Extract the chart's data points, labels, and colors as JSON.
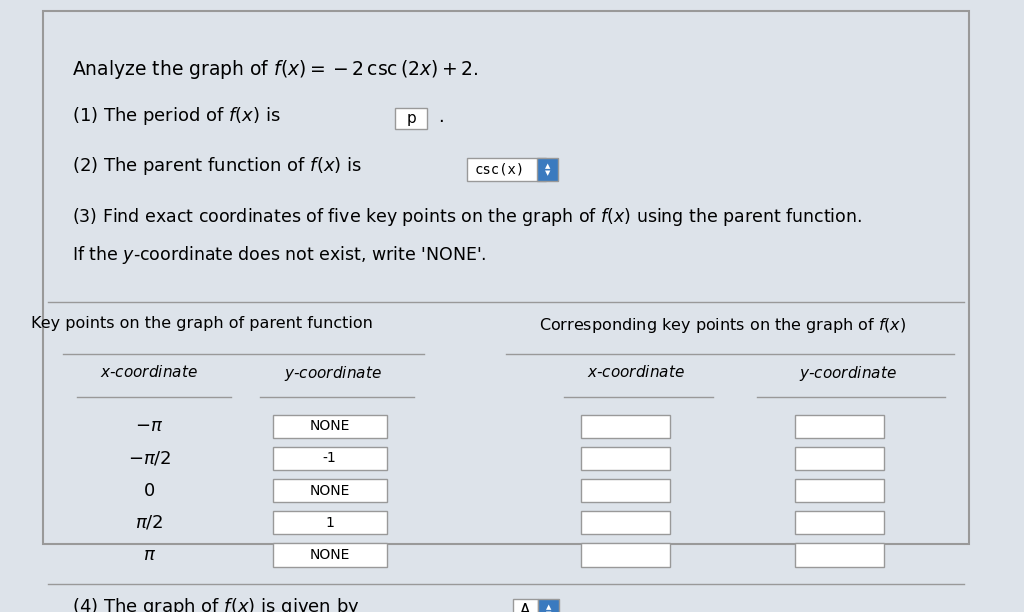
{
  "bg_color": "#dde3ea",
  "border_color": "#999999",
  "white": "#ffffff",
  "text_color": "#000000",
  "blue_btn_color": "#3a7abf",
  "title_text": "Analyze the graph of $f(x) = -2\\,\\mathrm{csc}\\,(2x) + 2.$",
  "line1": "(1) The period of $f(x)$ is",
  "period_box": "p",
  "line2_pre": "(2) The parent function of $f(x)$ is",
  "csc_box": "csc(x)",
  "line3": "(3) Find exact coordinates of five key points on the graph of $f(x)$ using the parent function.",
  "line4": "If the $y$-coordinate does not exist, write 'NONE'.",
  "left_header": "Key points on the graph of parent function",
  "right_header": "Corresponding key points on the graph of $f(x)$",
  "col_x": "$x$-coordinate",
  "col_y": "$y$-coordinate",
  "x_coords": [
    "$-\\pi$",
    "$-\\pi/2$",
    "$0$",
    "$\\pi/2$",
    "$\\pi$"
  ],
  "y_coords": [
    "NONE",
    "-1",
    "NONE",
    "1",
    "NONE"
  ],
  "line5_pre": "(4) The graph of $f(x)$ is given by",
  "a_box": "A"
}
